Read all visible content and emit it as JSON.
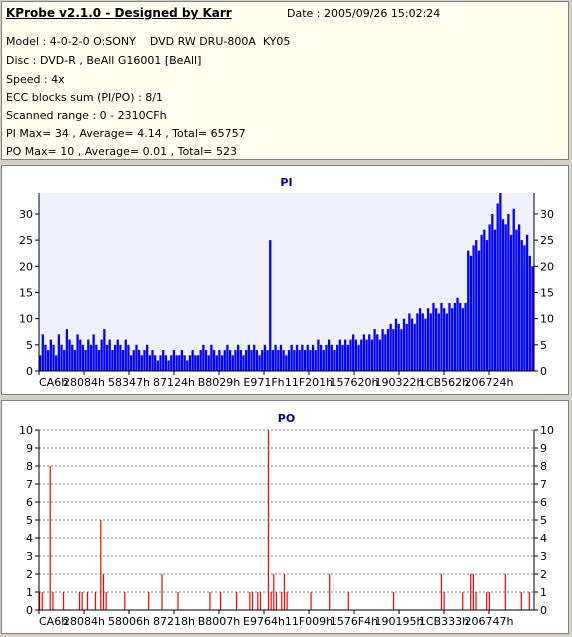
{
  "header": {
    "title": "KProbe v2.1.0 - Designed by Karr",
    "date": "Date : 2005/09/26 15:02:24",
    "lines": [
      "Model : 4-0-2-0 O:SONY    DVD RW DRU-800A  KY05",
      "Disc : DVD-R , BeAll G16001 [BeAll]",
      "Speed : 4x",
      "ECC blocks sum (PI/PO) : 8/1",
      "Scanned range : 0 - 2310CFh",
      "PI Max= 34 , Average= 4.14 , Total= 65757",
      "PO Max= 10 , Average= 0.01 , Total= 523"
    ]
  },
  "colors": {
    "pi_fill": "#0000ff",
    "po_fill": "#ff0000",
    "plot_bg": "#f0f0ff"
  },
  "chart_data": [
    {
      "type": "bar",
      "title": "PI",
      "ylim": [
        0,
        34
      ],
      "yticks": [
        0,
        5,
        10,
        15,
        20,
        25,
        30
      ],
      "xtick_labels": [
        "CA6h",
        "28084h",
        "58347h",
        "87124h",
        "B8029h",
        "E971Fh",
        "11F201h",
        "157620h",
        "190322h",
        "1CB562h",
        "206724h"
      ],
      "grid": false,
      "series": [
        {
          "values": [
            3,
            7,
            5,
            4,
            6,
            5,
            3,
            7,
            5,
            4,
            8,
            6,
            5,
            4,
            7,
            6,
            5,
            4,
            6,
            5,
            7,
            5,
            4,
            6,
            8,
            5,
            6,
            4,
            5,
            6,
            5,
            4,
            6,
            5,
            3,
            4,
            5,
            4,
            3,
            4,
            5,
            3,
            4,
            3,
            2,
            3,
            4,
            3,
            2,
            3,
            4,
            3,
            3,
            4,
            3,
            2,
            3,
            4,
            3,
            3,
            4,
            5,
            4,
            3,
            5,
            4,
            3,
            4,
            3,
            4,
            5,
            4,
            3,
            4,
            5,
            4,
            3,
            4,
            5,
            4,
            5,
            4,
            3,
            4,
            5,
            4,
            25,
            4,
            5,
            4,
            5,
            4,
            3,
            4,
            5,
            4,
            5,
            4,
            5,
            4,
            5,
            4,
            5,
            4,
            6,
            5,
            4,
            5,
            6,
            5,
            4,
            5,
            6,
            5,
            6,
            5,
            6,
            7,
            6,
            5,
            6,
            7,
            6,
            7,
            6,
            8,
            7,
            6,
            8,
            7,
            8,
            9,
            8,
            10,
            9,
            8,
            10,
            9,
            11,
            10,
            9,
            11,
            12,
            11,
            10,
            12,
            11,
            13,
            12,
            11,
            13,
            12,
            11,
            13,
            12,
            13,
            14,
            13,
            12,
            13,
            23,
            22,
            24,
            25,
            23,
            26,
            27,
            25,
            28,
            30,
            27,
            32,
            34,
            29,
            28,
            30,
            26,
            31,
            27,
            28,
            25,
            24,
            26,
            22,
            20
          ]
        }
      ]
    },
    {
      "type": "bar",
      "title": "PO",
      "ylim": [
        0,
        10
      ],
      "yticks": [
        0,
        1,
        2,
        3,
        4,
        5,
        6,
        7,
        8,
        9,
        10
      ],
      "xtick_labels": [
        "CA6h",
        "28084h",
        "58006h",
        "87218h",
        "B8007h",
        "E9764h",
        "11F009h",
        "1576F4h",
        "190195h",
        "1CB333h",
        "206747h"
      ],
      "grid": true,
      "series": [
        {
          "values": [
            1,
            1,
            0,
            0,
            8,
            1,
            0,
            0,
            0,
            1,
            0,
            0,
            0,
            0,
            0,
            1,
            1,
            0,
            1,
            0,
            0,
            1,
            0,
            5,
            2,
            1,
            0,
            0,
            0,
            0,
            0,
            0,
            1,
            0,
            0,
            0,
            0,
            0,
            0,
            0,
            0,
            1,
            0,
            0,
            0,
            0,
            2,
            0,
            0,
            0,
            0,
            0,
            1,
            0,
            0,
            0,
            0,
            0,
            0,
            0,
            0,
            0,
            0,
            0,
            1,
            0,
            0,
            0,
            1,
            0,
            0,
            0,
            0,
            0,
            1,
            0,
            0,
            0,
            0,
            1,
            1,
            0,
            1,
            1,
            0,
            0,
            10,
            1,
            2,
            1,
            0,
            1,
            2,
            1,
            0,
            0,
            0,
            0,
            0,
            0,
            0,
            0,
            1,
            0,
            0,
            0,
            0,
            0,
            0,
            2,
            0,
            0,
            0,
            0,
            0,
            0,
            1,
            0,
            0,
            0,
            0,
            0,
            0,
            0,
            0,
            0,
            0,
            0,
            0,
            0,
            0,
            0,
            0,
            1,
            0,
            0,
            0,
            0,
            0,
            0,
            0,
            0,
            0,
            0,
            0,
            0,
            0,
            0,
            0,
            0,
            0,
            2,
            1,
            0,
            0,
            0,
            0,
            0,
            0,
            1,
            0,
            0,
            2,
            2,
            1,
            0,
            0,
            0,
            1,
            1,
            0,
            0,
            0,
            0,
            0,
            2,
            0,
            0,
            0,
            0,
            0,
            1,
            0,
            0,
            1,
            0
          ]
        }
      ]
    }
  ]
}
